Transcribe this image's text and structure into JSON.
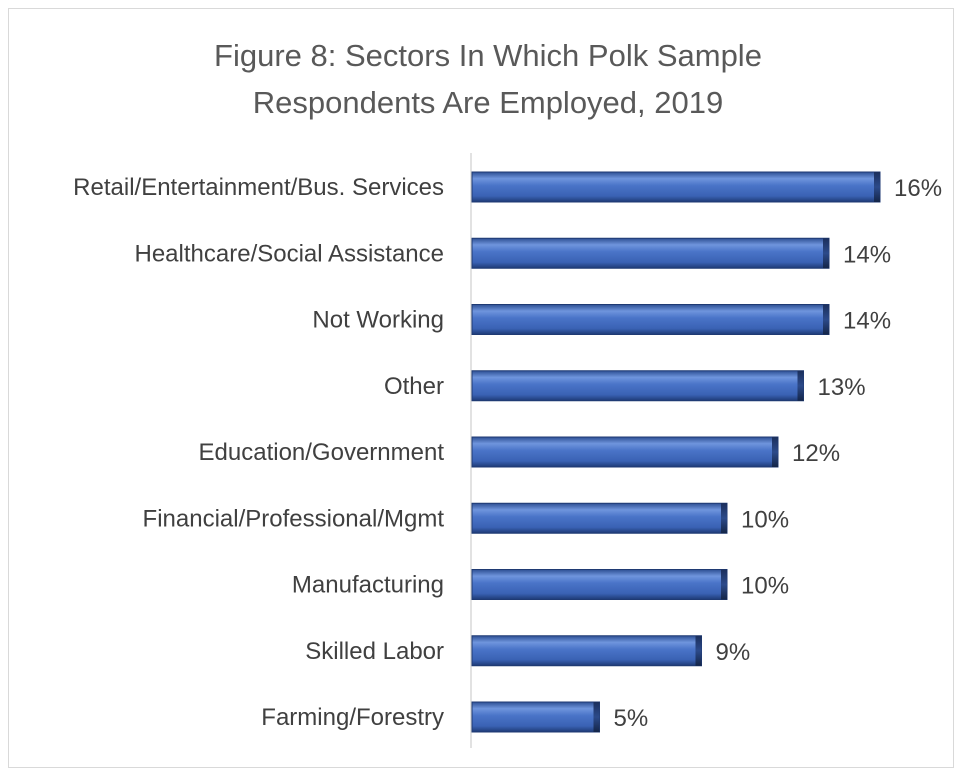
{
  "chart_data": {
    "type": "bar",
    "orientation": "horizontal",
    "title_lines": [
      "Figure 8: Sectors In Which Polk Sample",
      "Respondents Are Employed, 2019"
    ],
    "categories": [
      "Retail/Entertainment/Bus. Services",
      "Healthcare/Social Assistance",
      "Not Working",
      "Other",
      "Education/Government",
      "Financial/Professional/Mgmt",
      "Manufacturing",
      "Skilled Labor",
      "Farming/Forestry"
    ],
    "values": [
      16,
      14,
      14,
      13,
      12,
      10,
      10,
      9,
      5
    ],
    "value_labels": [
      "16%",
      "14%",
      "14%",
      "13%",
      "12%",
      "10%",
      "10%",
      "9%",
      "5%"
    ],
    "unit": "%",
    "xlabel": "",
    "ylabel": "",
    "grid": false,
    "legend": "none",
    "bar_color": "#4472c4"
  }
}
